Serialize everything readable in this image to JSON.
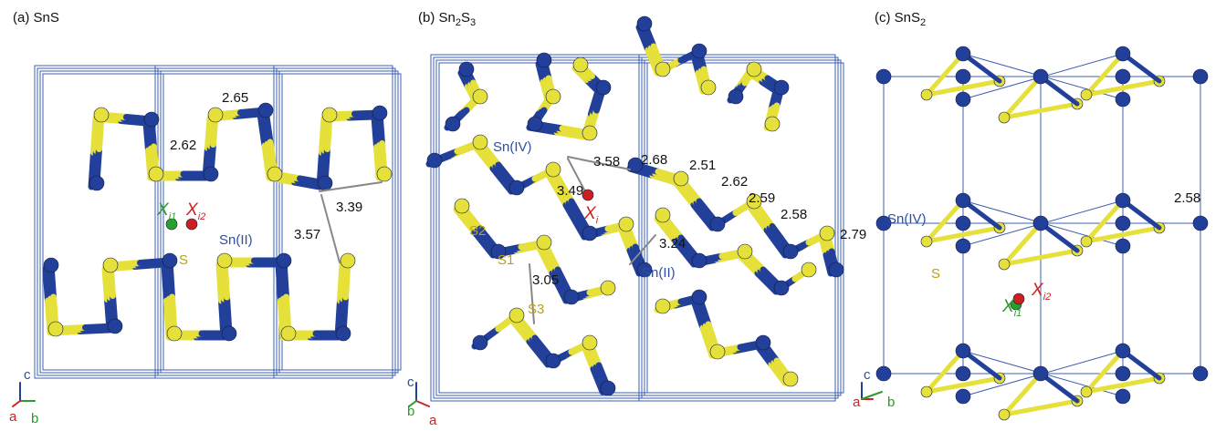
{
  "panels": [
    {
      "title": {
        "main": "(a) SnS"
      },
      "labels": {
        "d1": "2.65",
        "d2": "2.62",
        "d3": "3.39",
        "d4": "3.57",
        "sn": "Sn(II)",
        "s": "S"
      },
      "sites": {
        "x1": {
          "symbol": "X",
          "subscript": "i1"
        },
        "x2": {
          "symbol": "X",
          "subscript": "i2"
        }
      },
      "axes": {
        "c": "c",
        "a": "a",
        "b": "b"
      }
    },
    {
      "title": {
        "main": "(b) Sn",
        "sub1": "2",
        "mid": "S",
        "sub2": "3"
      },
      "labels": {
        "d1": "3.58",
        "d2": "3.49",
        "d3": "2.68",
        "d4": "2.51",
        "d5": "2.62",
        "d6": "2.59",
        "d7": "2.58",
        "d8": "2.79",
        "d9": "3.05",
        "d10": "3.24",
        "sn4": "Sn(IV)",
        "sn2": "Sn(II)",
        "s1": "S1",
        "s2": "S2",
        "s3": "S3"
      },
      "sites": {
        "x": {
          "symbol": "X",
          "subscript": "i"
        }
      },
      "axes": {
        "c": "c",
        "b": "b",
        "a": "a"
      }
    },
    {
      "title": {
        "main": "(c) SnS",
        "sub1": "2"
      },
      "labels": {
        "sn4": "Sn(IV)",
        "d1": "2.58",
        "s": "S"
      },
      "sites": {
        "x1": {
          "symbol": "X",
          "subscript": "i1"
        },
        "x2": {
          "symbol": "X",
          "subscript": "i2"
        }
      },
      "axes": {
        "c": "c",
        "a": "a",
        "b": "b"
      }
    }
  ]
}
